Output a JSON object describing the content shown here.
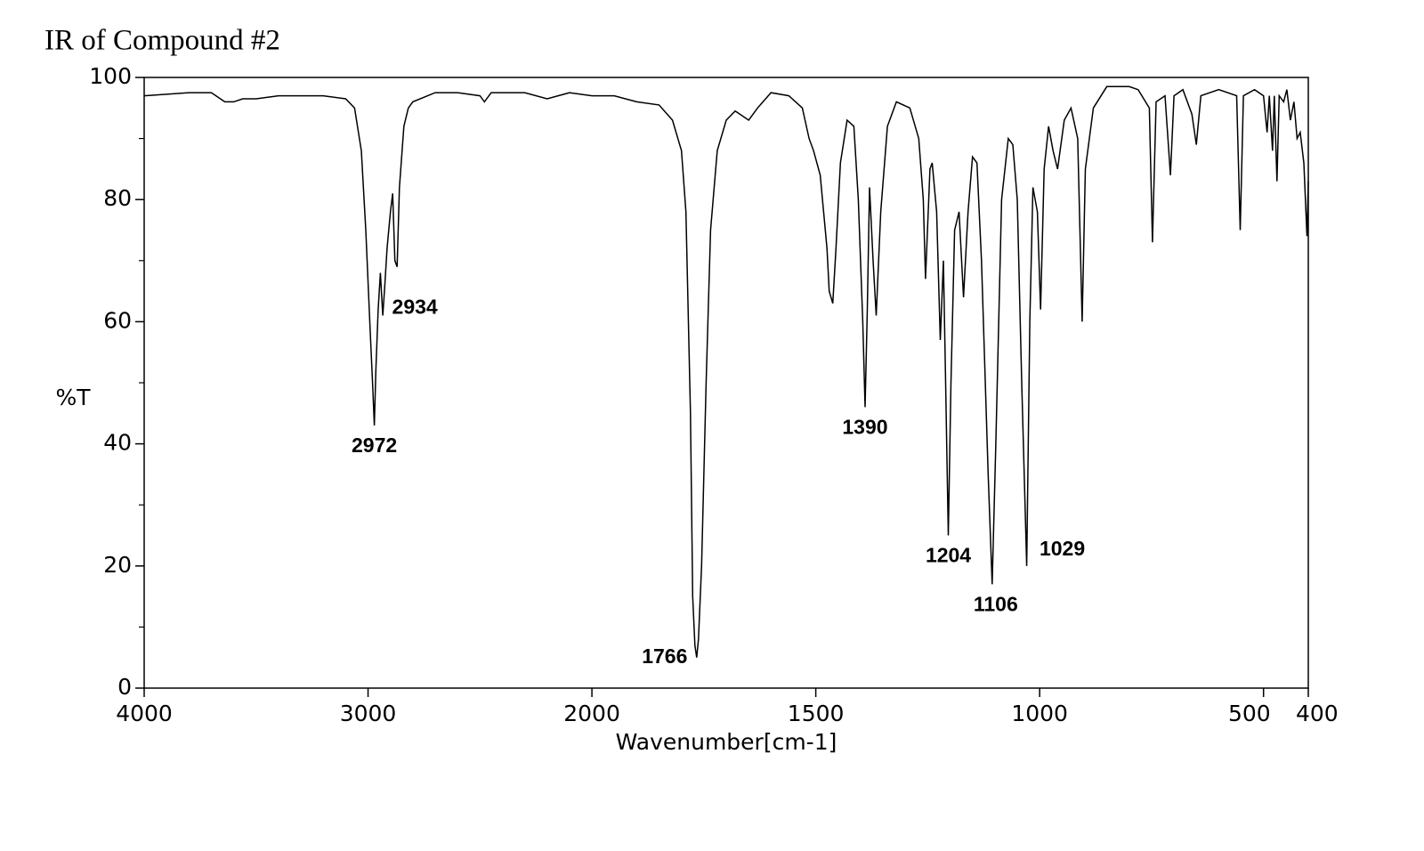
{
  "chart_data": {
    "type": "line",
    "title": "IR of Compound #2",
    "xlabel": "Wavenumber[cm-1]",
    "ylabel": "%T",
    "xlim": [
      4000,
      400
    ],
    "xticks": [
      4000,
      3000,
      2000,
      1500,
      1000,
      500,
      400
    ],
    "x_scale_break": 2000,
    "ylim": [
      0,
      100
    ],
    "yticks": [
      0,
      20,
      40,
      60,
      80,
      100
    ],
    "x": [
      4000,
      3800,
      3700,
      3640,
      3600,
      3560,
      3500,
      3400,
      3200,
      3100,
      3060,
      3030,
      3010,
      2990,
      2980,
      2972,
      2965,
      2955,
      2945,
      2934,
      2925,
      2915,
      2900,
      2890,
      2880,
      2870,
      2860,
      2840,
      2820,
      2800,
      2700,
      2600,
      2500,
      2480,
      2450,
      2300,
      2200,
      2100,
      2000,
      1950,
      1900,
      1850,
      1820,
      1800,
      1790,
      1780,
      1775,
      1770,
      1766,
      1762,
      1755,
      1745,
      1735,
      1720,
      1700,
      1680,
      1650,
      1630,
      1600,
      1560,
      1530,
      1515,
      1505,
      1490,
      1475,
      1470,
      1462,
      1455,
      1445,
      1430,
      1415,
      1405,
      1395,
      1390,
      1385,
      1380,
      1372,
      1365,
      1355,
      1340,
      1320,
      1290,
      1270,
      1260,
      1255,
      1245,
      1240,
      1230,
      1222,
      1215,
      1210,
      1204,
      1198,
      1190,
      1180,
      1170,
      1160,
      1150,
      1140,
      1130,
      1115,
      1106,
      1098,
      1085,
      1070,
      1060,
      1050,
      1040,
      1029,
      1022,
      1015,
      1005,
      998,
      990,
      980,
      970,
      960,
      945,
      930,
      915,
      905,
      898,
      880,
      850,
      800,
      780,
      755,
      748,
      740,
      720,
      708,
      700,
      680,
      660,
      650,
      640,
      600,
      560,
      552,
      545,
      520,
      500,
      492,
      487,
      480,
      476,
      470,
      465,
      455,
      448,
      440,
      432,
      425,
      418,
      410,
      403,
      400
    ],
    "series": [
      {
        "name": "spectrum",
        "color": "#000000",
        "values": [
          97,
          97.5,
          97.5,
          96,
          96,
          96.5,
          96.5,
          97,
          97,
          96.5,
          95,
          88,
          75,
          58,
          50,
          43,
          52,
          62,
          68,
          61,
          66,
          72,
          78,
          81,
          70,
          69,
          82,
          92,
          95,
          96,
          97.5,
          97.5,
          97,
          96,
          97.5,
          97.5,
          96.5,
          97.5,
          97,
          97,
          96,
          95.5,
          93,
          88,
          78,
          45,
          15,
          7,
          5,
          8,
          20,
          50,
          75,
          88,
          93,
          94.5,
          93,
          95,
          97.5,
          97,
          95,
          90,
          88,
          84,
          72,
          65,
          63,
          72,
          86,
          93,
          92,
          80,
          60,
          46,
          62,
          82,
          70,
          61,
          78,
          92,
          96,
          95,
          90,
          80,
          67,
          85,
          86,
          78,
          57,
          70,
          50,
          25,
          50,
          75,
          78,
          64,
          78,
          87,
          86,
          70,
          35,
          17,
          40,
          80,
          90,
          89,
          80,
          50,
          20,
          60,
          82,
          78,
          62,
          85,
          92,
          88,
          85,
          93,
          95,
          90,
          60,
          85,
          95,
          98.5,
          98.5,
          98,
          95,
          73,
          96,
          97,
          84,
          97,
          98,
          94,
          89,
          97,
          98,
          97,
          75,
          97,
          98,
          97,
          91,
          97,
          88,
          97,
          83,
          97,
          96,
          98,
          93,
          96,
          90,
          91,
          86,
          74,
          83
        ]
      }
    ],
    "peaks": [
      {
        "x": 2972,
        "y": 43
      },
      {
        "x": 2934,
        "y": 61
      },
      {
        "x": 1766,
        "y": 5
      },
      {
        "x": 1390,
        "y": 46
      },
      {
        "x": 1204,
        "y": 25
      },
      {
        "x": 1106,
        "y": 17
      },
      {
        "x": 1029,
        "y": 20
      }
    ]
  }
}
